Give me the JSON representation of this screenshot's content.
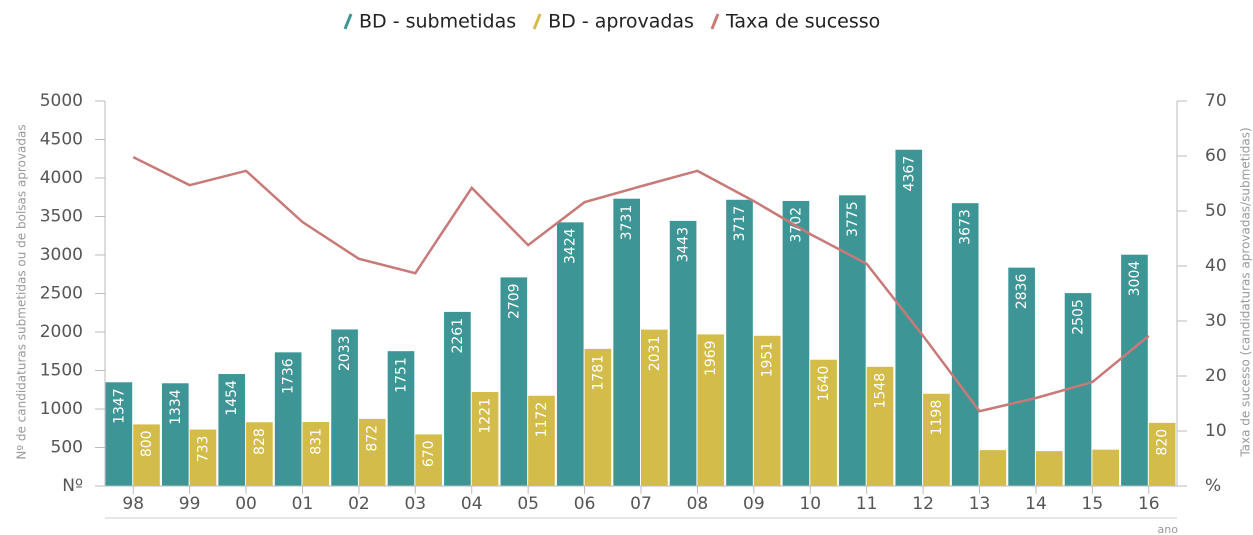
{
  "chart_data": {
    "type": "bar",
    "categories": [
      "98",
      "99",
      "00",
      "01",
      "02",
      "03",
      "04",
      "05",
      "06",
      "07",
      "08",
      "09",
      "10",
      "11",
      "12",
      "13",
      "14",
      "15",
      "16"
    ],
    "series": [
      {
        "name": "BD - submetidas",
        "color": "#3d9596",
        "values": [
          1347,
          1334,
          1454,
          1736,
          2033,
          1751,
          2261,
          2709,
          3424,
          3731,
          3443,
          3717,
          3702,
          3775,
          4367,
          3673,
          2836,
          2505,
          3004
        ]
      },
      {
        "name": "BD - aprovadas",
        "color": "#d4bc4a",
        "values": [
          800,
          733,
          828,
          831,
          872,
          670,
          1221,
          1172,
          1781,
          2031,
          1969,
          1951,
          1640,
          1548,
          1198,
          466,
          453,
          472,
          820
        ]
      },
      {
        "name": "Taxa de sucesso",
        "color": "#c87a78",
        "type": "line",
        "axis": "y2",
        "values": [
          59.8,
          54.7,
          57.3,
          48,
          41.3,
          38.7,
          54.2,
          43.8,
          51.6,
          54.5,
          57.3,
          51.8,
          45.8,
          40.4,
          27.3,
          13.6,
          16,
          18.9,
          27.3
        ]
      }
    ],
    "ylabel": "Nº de candidaturas submetidas ou de bolsas aprovadas",
    "y2label": "Taxa de sucesso (candidaturas aprovadas/submetidas)",
    "xlabel": "ano",
    "ylim": [
      0,
      5000
    ],
    "yticks": [
      {
        "value": 0,
        "label": "Nº"
      },
      500,
      1000,
      1500,
      2000,
      2500,
      3000,
      3500,
      4000,
      4500,
      5000
    ],
    "y2lim": [
      0,
      70
    ],
    "y2ticks": [
      {
        "value": 0,
        "label": "%"
      },
      10,
      20,
      30,
      40,
      50,
      60,
      70
    ],
    "legend": "top"
  }
}
